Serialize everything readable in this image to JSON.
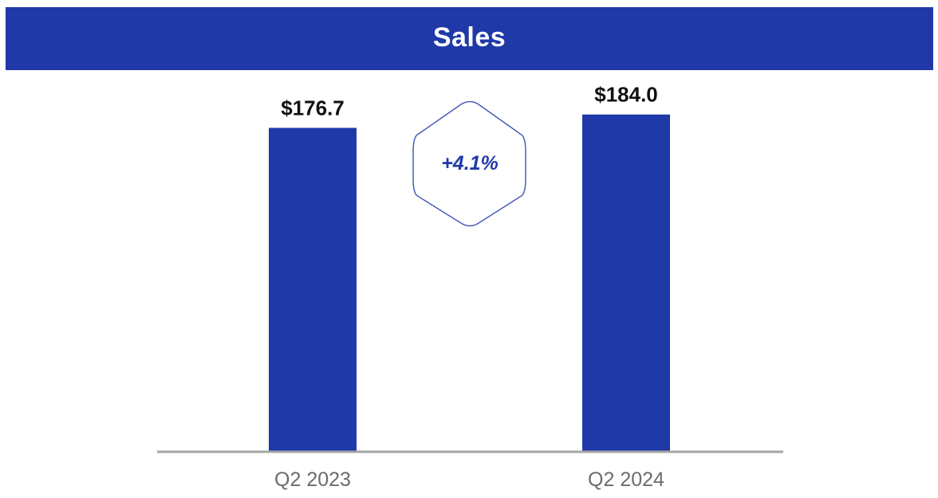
{
  "header": {
    "title": "Sales"
  },
  "colors": {
    "title_bar": "#2039a8",
    "bar": "#2039a8",
    "badge_stroke": "#4a5cb8",
    "axis": "#a6a6a6"
  },
  "badge": {
    "text": "+4.1%"
  },
  "chart_data": {
    "type": "bar",
    "title": "Sales",
    "categories": [
      "Q2 2023",
      "Q2 2024"
    ],
    "values": [
      176.7,
      184.0
    ],
    "data_labels": [
      "$176.7",
      "$184.0"
    ],
    "ylim": [
      0,
      200
    ],
    "grid": false,
    "legend": "none",
    "xlabel": "",
    "ylabel": ""
  }
}
